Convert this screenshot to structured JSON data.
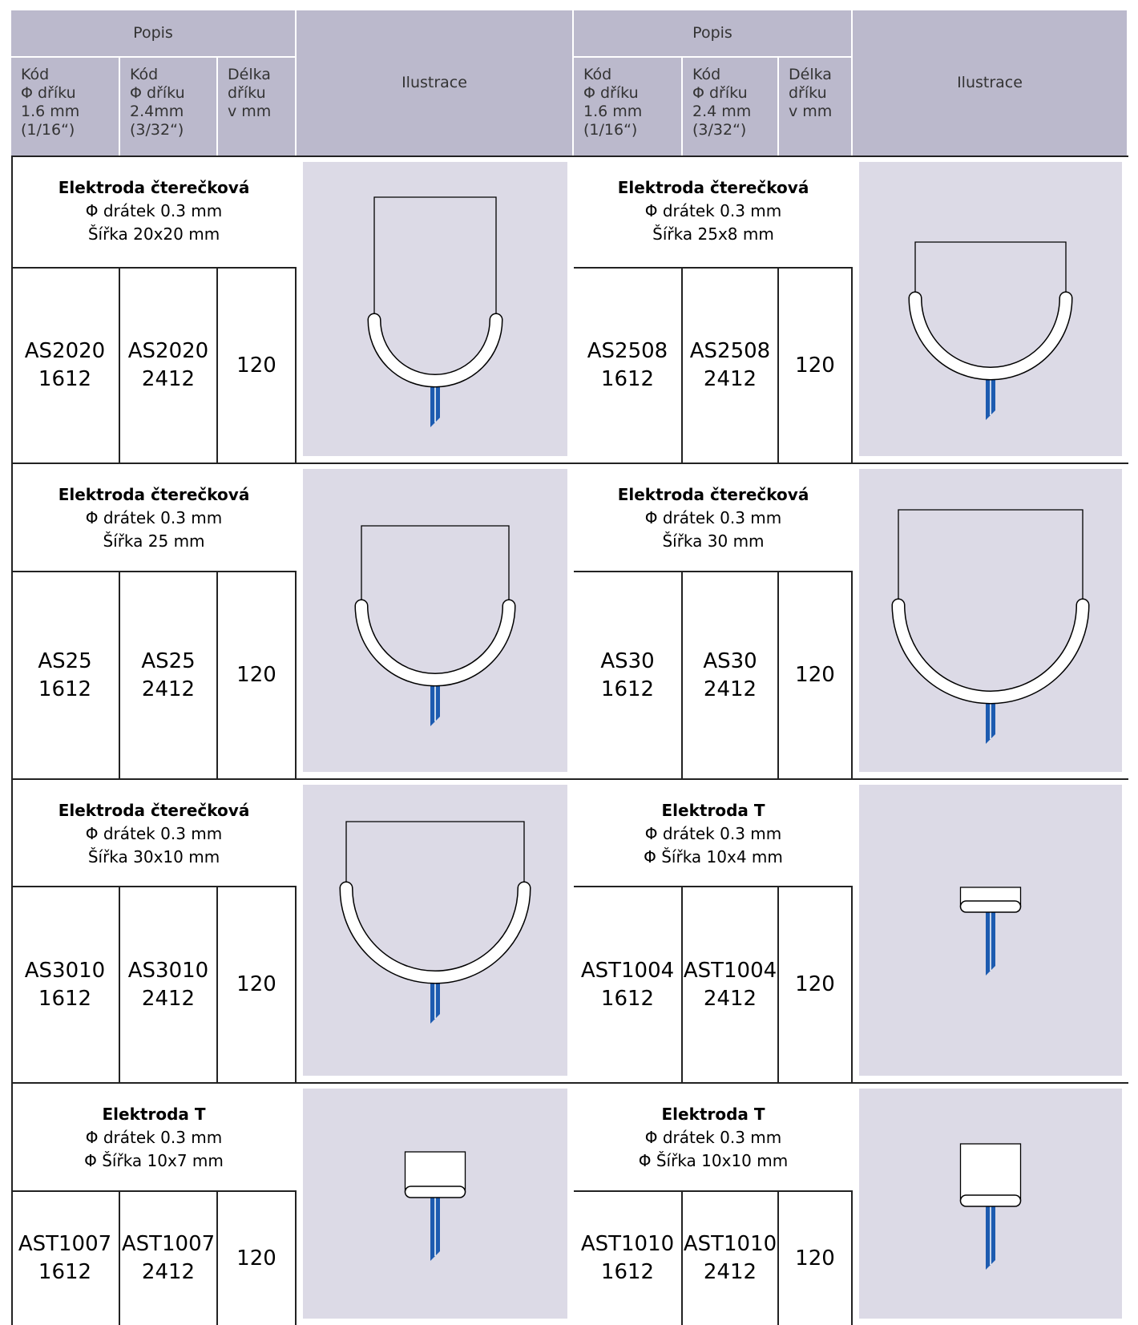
{
  "header": {
    "left": {
      "popis": "Popis",
      "columns": [
        "Kód\nΦ dříku\n1.6 mm\n(1/16“)",
        "Kód\nΦ dříku\n2.4mm\n(3/32“)",
        "Délka\ndříku\nv mm"
      ],
      "illustration": "Ilustrace"
    },
    "right": {
      "popis": "Popis",
      "columns": [
        "Kód\nΦ dříku\n1.6 mm\n(1/16“)",
        "Kód\nΦ dříku\n2.4 mm\n(3/32“)",
        "Délka\ndříku\nv mm"
      ],
      "illustration": "Ilustrace"
    }
  },
  "rows": [
    {
      "left": {
        "title": "Elektroda čterečková",
        "wire": "Φ drátek 0.3 mm",
        "width": "Šířka 20x20 mm",
        "code16": "AS2020\n1612",
        "code24": "AS2020\n2412",
        "length": "120"
      },
      "right": {
        "title": "Elektroda čterečková",
        "wire": "Φ drátek 0.3 mm",
        "width": "Šířka 25x8 mm",
        "code16": "AS2508\n1612",
        "code24": "AS2508\n2412",
        "length": "120"
      }
    },
    {
      "left": {
        "title": "Elektroda čterečková",
        "wire": "Φ drátek 0.3 mm",
        "width": "Šířka 25 mm",
        "code16": "AS25\n1612",
        "code24": "AS25\n2412",
        "length": "120"
      },
      "right": {
        "title": "Elektroda čterečková",
        "wire": "Φ drátek 0.3 mm",
        "width": "Šířka 30 mm",
        "code16": "AS30\n1612",
        "code24": "AS30\n2412",
        "length": "120"
      }
    },
    {
      "left": {
        "title": "Elektroda čterečková",
        "wire": "Φ drátek 0.3 mm",
        "width": "Šířka 30x10 mm",
        "code16": "AS3010\n1612",
        "code24": "AS3010\n2412",
        "length": "120"
      },
      "right": {
        "title": "Elektroda T",
        "wire": "Φ drátek 0.3 mm",
        "width": "Φ Šířka 10x4 mm",
        "code16": "AST1004\n1612",
        "code24": "AST1004\n2412",
        "length": "120"
      }
    },
    {
      "left": {
        "title": "Elektroda T",
        "wire": "Φ drátek 0.3 mm",
        "width": "Φ Šířka 10x7 mm",
        "code16": "AST1007\n1612",
        "code24": "AST1007\n2412",
        "length": "120"
      },
      "right": {
        "title": "Elektroda T",
        "wire": "Φ drátek 0.3 mm",
        "width": "Φ Šířka 10x10 mm",
        "code16": "AST1010\n1612",
        "code24": "AST1010\n2412",
        "length": "120"
      }
    }
  ]
}
